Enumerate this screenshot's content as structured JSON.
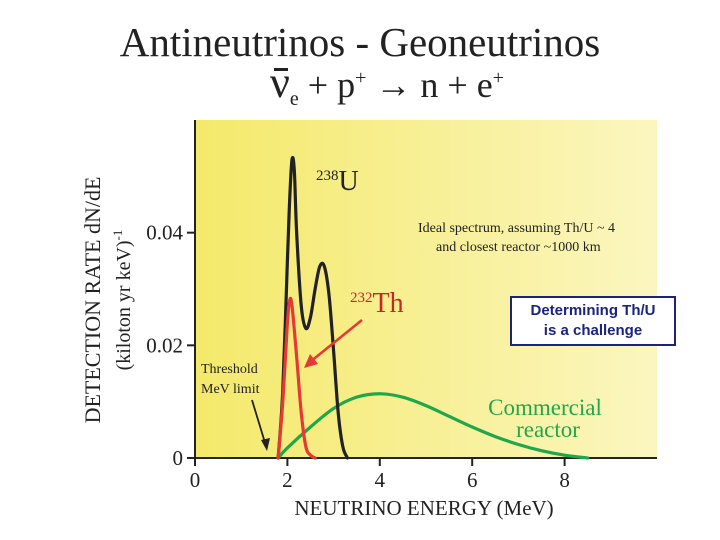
{
  "slide": {
    "title": "Antineutrinos - Geoneutrinos",
    "equation": {
      "nu": "ν",
      "nu_sub": "e",
      "plus1": " + p",
      "p_sup": "+",
      "arrow": " → n + e",
      "e_sup": "+"
    },
    "callout": {
      "line1": "Determining Th/U",
      "line2": "is a challenge"
    }
  },
  "chart_data": {
    "type": "line",
    "xlabel": "NEUTRINO ENERGY (MeV)",
    "ylabel_line1": "DETECTION RATE dN/dE",
    "ylabel_line2": "(kiloton yr keV)",
    "ylabel_sup": "-1",
    "xlim": [
      0,
      10
    ],
    "ylim": [
      0,
      0.06
    ],
    "x_ticks": [
      0,
      2,
      4,
      6,
      8
    ],
    "y_ticks": [
      0,
      0.02,
      0.04
    ],
    "y_tick_labels": [
      "0",
      "0.02",
      "0.04"
    ],
    "x_tick_labels": [
      "0",
      "2",
      "4",
      "6",
      "8"
    ],
    "background": {
      "gradient_from": "#f4e96a",
      "gradient_to": "#fbf6c0"
    },
    "series": [
      {
        "name": "U",
        "label_sup": "238",
        "label_text": "U",
        "color": "#222222",
        "x": [
          1.8,
          1.9,
          2.0,
          2.05,
          2.1,
          2.15,
          2.2,
          2.3,
          2.4,
          2.5,
          2.6,
          2.7,
          2.8,
          2.9,
          3.0,
          3.1,
          3.2,
          3.3
        ],
        "y": [
          0,
          0.012,
          0.035,
          0.046,
          0.053,
          0.051,
          0.04,
          0.027,
          0.023,
          0.025,
          0.03,
          0.034,
          0.034,
          0.029,
          0.019,
          0.008,
          0.002,
          0
        ]
      },
      {
        "name": "Th",
        "label_sup": "232",
        "label_text": "Th",
        "color": "#e53935",
        "x": [
          1.8,
          1.9,
          2.0,
          2.05,
          2.1,
          2.2,
          2.3,
          2.4,
          2.5,
          2.6
        ],
        "y": [
          0,
          0.01,
          0.024,
          0.028,
          0.027,
          0.018,
          0.008,
          0.002,
          0.0005,
          0
        ]
      },
      {
        "name": "Commercial reactor",
        "label_line1": "Commercial",
        "label_line2": "reactor",
        "color": "#1fa84a",
        "x": [
          1.8,
          2.0,
          2.5,
          3.0,
          3.5,
          4.0,
          4.5,
          5.0,
          5.5,
          6.0,
          6.5,
          7.0,
          7.5,
          8.0,
          8.5
        ],
        "y": [
          0,
          0.0018,
          0.0055,
          0.0088,
          0.0108,
          0.0114,
          0.0108,
          0.0093,
          0.0074,
          0.0055,
          0.0038,
          0.0024,
          0.0013,
          0.0005,
          0
        ]
      }
    ],
    "annotations": {
      "ideal_line1": "Ideal spectrum, assuming Th/U ~ 4",
      "ideal_line2": "and closest reactor ~1000 km",
      "threshold_line1": "Threshold",
      "threshold_line2": "MeV limit"
    }
  }
}
